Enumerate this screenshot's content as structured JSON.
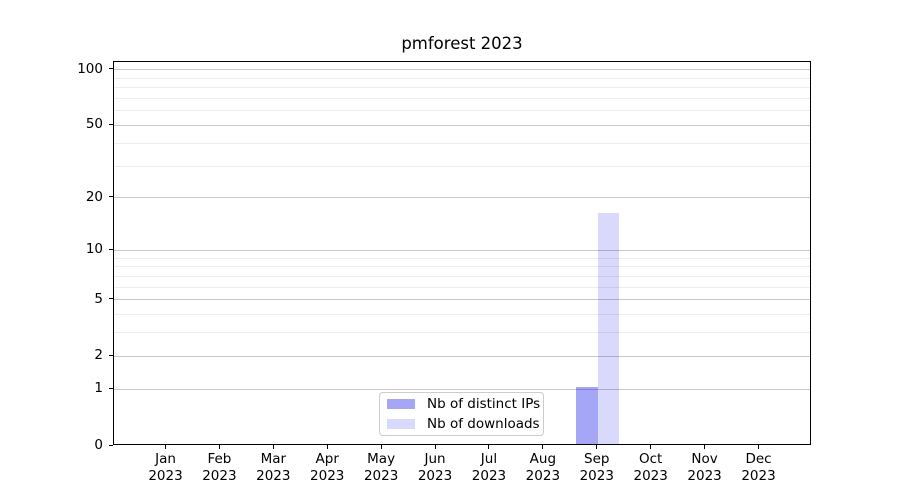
{
  "chart_data": {
    "type": "bar",
    "title": "pmforest 2023",
    "categories": [
      "Jan 2023",
      "Feb 2023",
      "Mar 2023",
      "Apr 2023",
      "May 2023",
      "Jun 2023",
      "Jul 2023",
      "Aug 2023",
      "Sep 2023",
      "Oct 2023",
      "Nov 2023",
      "Dec 2023"
    ],
    "series": [
      {
        "name": "Nb of distinct IPs",
        "base_color": "#0000e6",
        "alpha": 0.35,
        "values": [
          0,
          0,
          0,
          0,
          0,
          0,
          0,
          0,
          1,
          0,
          0,
          0
        ]
      },
      {
        "name": "Nb of downloads",
        "base_color": "#0000e6",
        "alpha": 0.15,
        "values": [
          0,
          0,
          0,
          0,
          0,
          0,
          0,
          0,
          16,
          0,
          0,
          0
        ]
      }
    ],
    "xlabel": "",
    "ylabel": "",
    "yscale": "log1p",
    "ylim": [
      0,
      110
    ],
    "y_major_ticks": [
      0,
      1,
      2,
      5,
      10,
      20,
      50,
      100
    ],
    "y_minor_gridlines": [
      3,
      4,
      6,
      7,
      8,
      9,
      30,
      40,
      60,
      70,
      80,
      90
    ],
    "grid": true,
    "legend_position": "lower center",
    "colors": {
      "grid_major": "#c9c9c9",
      "grid_minor": "#ededed",
      "axis": "#000000",
      "background": "#ffffff"
    }
  }
}
